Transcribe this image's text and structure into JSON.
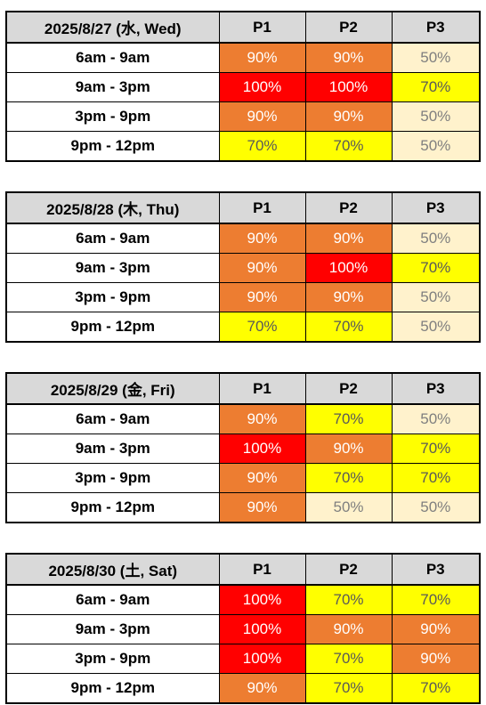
{
  "columns": [
    "P1",
    "P2",
    "P3"
  ],
  "colors": {
    "100%": "#ff0000",
    "90%": "#ed7d31",
    "70%": "#ffff00",
    "50%": "#fff2cc"
  },
  "days": [
    {
      "title": "2025/8/27 (水, Wed)",
      "rows": [
        {
          "slot": "6am - 9am",
          "values": [
            "90%",
            "90%",
            "50%"
          ]
        },
        {
          "slot": "9am - 3pm",
          "values": [
            "100%",
            "100%",
            "70%"
          ]
        },
        {
          "slot": "3pm - 9pm",
          "values": [
            "90%",
            "90%",
            "50%"
          ]
        },
        {
          "slot": "9pm - 12pm",
          "values": [
            "70%",
            "70%",
            "50%"
          ]
        }
      ]
    },
    {
      "title": "2025/8/28 (木, Thu)",
      "rows": [
        {
          "slot": "6am - 9am",
          "values": [
            "90%",
            "90%",
            "50%"
          ]
        },
        {
          "slot": "9am - 3pm",
          "values": [
            "90%",
            "100%",
            "70%"
          ]
        },
        {
          "slot": "3pm - 9pm",
          "values": [
            "90%",
            "90%",
            "50%"
          ]
        },
        {
          "slot": "9pm - 12pm",
          "values": [
            "70%",
            "70%",
            "50%"
          ]
        }
      ]
    },
    {
      "title": "2025/8/29 (金, Fri)",
      "rows": [
        {
          "slot": "6am - 9am",
          "values": [
            "90%",
            "70%",
            "50%"
          ]
        },
        {
          "slot": "9am - 3pm",
          "values": [
            "100%",
            "90%",
            "70%"
          ]
        },
        {
          "slot": "3pm - 9pm",
          "values": [
            "90%",
            "70%",
            "70%"
          ]
        },
        {
          "slot": "9pm - 12pm",
          "values": [
            "90%",
            "50%",
            "50%"
          ]
        }
      ]
    },
    {
      "title": "2025/8/30 (土, Sat)",
      "rows": [
        {
          "slot": "6am - 9am",
          "values": [
            "100%",
            "70%",
            "70%"
          ]
        },
        {
          "slot": "9am - 3pm",
          "values": [
            "100%",
            "90%",
            "90%"
          ]
        },
        {
          "slot": "3pm - 9pm",
          "values": [
            "100%",
            "70%",
            "90%"
          ]
        },
        {
          "slot": "9pm - 12pm",
          "values": [
            "90%",
            "70%",
            "70%"
          ]
        }
      ]
    }
  ]
}
